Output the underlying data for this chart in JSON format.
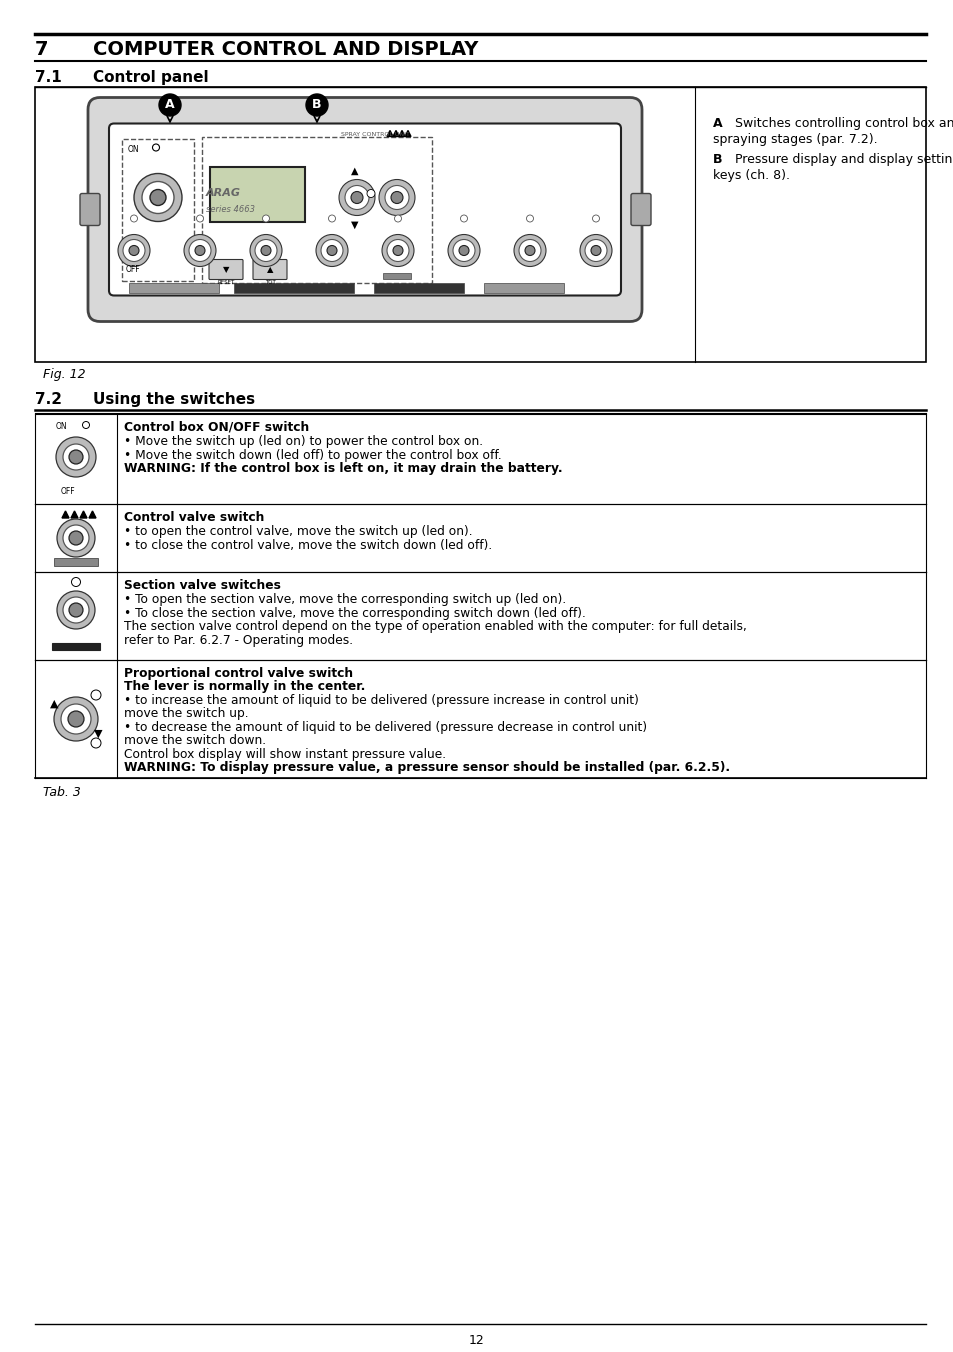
{
  "bg_color": "#ffffff",
  "header_num": "7",
  "header_title": "COMPUTER CONTROL AND DISPLAY",
  "s71_num": "7.1",
  "s71_title": "Control panel",
  "s72_num": "7.2",
  "s72_title": "Using the switches",
  "fig_caption": "Fig. 12",
  "tab_caption": "Tab. 3",
  "page_number": "12",
  "annot_A": "A",
  "annot_A_line1": "Switches controlling control box and",
  "annot_A_line2": "spraying stages (par. 7.2).",
  "annot_B": "B",
  "annot_B_line1": "Pressure display and display setting",
  "annot_B_line2": "keys (ch. 8).",
  "row1_title": "Control box ON/OFF switch",
  "row1_lines": [
    {
      "bold": false,
      "text": "• Move the switch up (led on) to power the control box on."
    },
    {
      "bold": false,
      "text": "• Move the switch down (led off) to power the control box off."
    },
    {
      "bold": true,
      "text": "WARNING: If the control box is left on, it may drain the battery."
    }
  ],
  "row2_title": "Control valve switch",
  "row2_lines": [
    {
      "bold": false,
      "text": "• to open the control valve, move the switch up (led on)."
    },
    {
      "bold": false,
      "text": "• to close the control valve, move the switch down (led off)."
    }
  ],
  "row3_title": "Section valve switches",
  "row3_lines": [
    {
      "bold": false,
      "text": "• To open the section valve, move the corresponding switch up (led on)."
    },
    {
      "bold": false,
      "text": "• To close the section valve, move the corresponding switch down (led off)."
    },
    {
      "bold": false,
      "text": "The section valve control depend on the type of operation enabled with the computer: for full details,"
    },
    {
      "bold": false,
      "text": "refer to Par. 6.2.7 - Operating modes."
    }
  ],
  "row4_lines": [
    {
      "bold": true,
      "text": "Proportional control valve switch"
    },
    {
      "bold": true,
      "text": "The lever is normally in the center."
    },
    {
      "bold": false,
      "text": "• to increase the amount of liquid to be delivered (pressure increase in control unit)"
    },
    {
      "bold": false,
      "text": "move the switch up."
    },
    {
      "bold": false,
      "text": "• to decrease the amount of liquid to be delivered (pressure decrease in control unit)"
    },
    {
      "bold": false,
      "text": "move the switch down."
    },
    {
      "bold": false,
      "text": "Control box display will show instant pressure value."
    },
    {
      "bold": true,
      "text": "WARNING: To display pressure value, a pressure sensor should be installed (par. 6.2.5)."
    }
  ]
}
